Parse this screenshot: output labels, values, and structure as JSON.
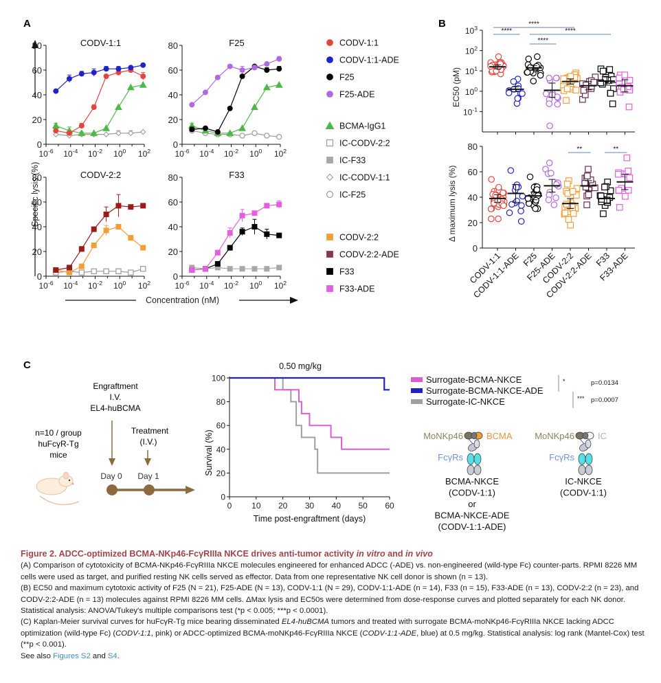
{
  "panels": {
    "A": {
      "letter": "A"
    },
    "B": {
      "letter": "B"
    },
    "C": {
      "letter": "C"
    }
  },
  "colors": {
    "codv11": "#e4453e",
    "codv11_ade": "#1f22c9",
    "f25": "#000000",
    "f25_ade": "#b168e0",
    "bcma_igg1": "#4fb848",
    "ic_grey": "#9a9a9a",
    "ic_f33": "#a8a8a8",
    "codv22": "#f0a038",
    "codv22_ade": "#8a3456",
    "codv22_ade_line": "#9b1b1b",
    "f33": "#000000",
    "f33_ade": "#e45fe0",
    "sig_line": "#5b86b8",
    "brown": "#8c6a3f",
    "caption_title": "#a0454b",
    "link": "#3a8fc4"
  },
  "chart_data": [
    {
      "id": "A-codv11",
      "type": "line",
      "title": "CODV-1:1",
      "xscale": "log10",
      "xlim": [
        -6,
        2
      ],
      "xticks": [
        "10-6",
        "10-4",
        "10-2",
        "100",
        "102"
      ],
      "ylim": [
        0,
        80
      ],
      "yticks": [
        "0",
        "20",
        "40",
        "60",
        "80"
      ],
      "x_log": [
        -5.2,
        -4.1,
        -3.1,
        -2.1,
        -1.1,
        -0.1,
        0.9,
        1.9
      ],
      "series": [
        {
          "name": "CODV-1:1-ADE",
          "marker": "circle",
          "color": "#1f22c9",
          "values": [
            43,
            53,
            57,
            58,
            61,
            61,
            62,
            64
          ],
          "err": [
            1,
            3,
            2,
            3,
            2,
            2,
            1,
            1
          ]
        },
        {
          "name": "CODV-1:1",
          "marker": "circle",
          "color": "#e4453e",
          "values": [
            11,
            9,
            15,
            30,
            55,
            58,
            60,
            55
          ],
          "err": [
            1,
            1,
            2,
            2,
            1,
            1,
            2,
            3
          ]
        },
        {
          "name": "BCMA-IgG1",
          "marker": "triangle",
          "color": "#4fb848",
          "values": [
            15,
            11,
            9,
            9,
            13,
            30,
            46,
            48
          ],
          "err": [
            2,
            3,
            1,
            1,
            1,
            1,
            1,
            1
          ]
        },
        {
          "name": "IC-CODV-1:1",
          "marker": "diamond-open",
          "color": "#9a9a9a",
          "values": [
            8,
            7,
            8,
            8,
            8,
            9,
            9,
            10
          ],
          "err": [
            2,
            1,
            2,
            1,
            1,
            2,
            2,
            1
          ]
        }
      ]
    },
    {
      "id": "A-f25",
      "type": "line",
      "title": "F25",
      "xscale": "log10",
      "xlim": [
        -6,
        2
      ],
      "xticks": [
        "10-6",
        "10-4",
        "10-2",
        "100",
        "102"
      ],
      "ylim": [
        0,
        80
      ],
      "yticks": [
        "0",
        "20",
        "40",
        "60",
        "80"
      ],
      "x_log": [
        -5.2,
        -4.1,
        -3.1,
        -2.1,
        -1.1,
        -0.1,
        0.9,
        1.9
      ],
      "series": [
        {
          "name": "F25-ADE",
          "marker": "circle",
          "color": "#b168e0",
          "values": [
            32,
            42,
            54,
            63,
            60,
            62,
            65,
            69
          ],
          "err": [
            1,
            1,
            1,
            1,
            3,
            2,
            1,
            2
          ]
        },
        {
          "name": "F25",
          "marker": "circle",
          "color": "#000000",
          "values": [
            12,
            13,
            10,
            29,
            55,
            63,
            60,
            61
          ],
          "err": [
            2,
            1,
            1,
            1,
            1,
            1,
            2,
            2
          ]
        },
        {
          "name": "BCMA-IgG1",
          "marker": "triangle",
          "color": "#4fb848",
          "values": [
            15,
            11,
            9,
            9,
            13,
            30,
            46,
            48
          ],
          "err": [
            2,
            1,
            1,
            1,
            1,
            1,
            1,
            1
          ]
        },
        {
          "name": "IC-F25",
          "marker": "circle-open",
          "color": "#9a9a9a",
          "values": [
            11,
            9,
            8,
            8,
            7,
            9,
            7,
            6
          ],
          "err": [
            2,
            1,
            1,
            1,
            1,
            1,
            1,
            1
          ]
        }
      ]
    },
    {
      "id": "A-codv22",
      "type": "line",
      "title": "CODV-2:2",
      "xscale": "log10",
      "xlim": [
        -6,
        2
      ],
      "xticks": [
        "10-6",
        "10-4",
        "10-2",
        "100",
        "102"
      ],
      "ylim": [
        0,
        80
      ],
      "yticks": [
        "0",
        "20",
        "40",
        "60",
        "80"
      ],
      "x_log": [
        -5.2,
        -4.1,
        -3.1,
        -2.1,
        -1.1,
        -0.1,
        0.9,
        1.9
      ],
      "series": [
        {
          "name": "CODV-2:2-ADE",
          "marker": "square",
          "color": "#9b1b1b",
          "values": [
            5,
            7,
            22,
            38,
            50,
            57,
            56,
            57
          ],
          "err": [
            1,
            1,
            2,
            1,
            6,
            9,
            1,
            1
          ]
        },
        {
          "name": "CODV-2:2",
          "marker": "square",
          "color": "#f0a038",
          "values": [
            5,
            3,
            8,
            25,
            37,
            40,
            31,
            23
          ],
          "err": [
            1,
            1,
            1,
            1,
            4,
            1,
            2,
            1
          ]
        },
        {
          "name": "IC-CODV-2:2",
          "marker": "square-open",
          "color": "#9a9a9a",
          "values": [
            3,
            4,
            3,
            4,
            4,
            4,
            3,
            6
          ],
          "err": [
            1,
            1,
            1,
            1,
            1,
            2,
            1,
            2
          ]
        }
      ]
    },
    {
      "id": "A-f33",
      "type": "line",
      "title": "F33",
      "xscale": "log10",
      "xlim": [
        -6,
        2
      ],
      "xticks": [
        "10-6",
        "10-4",
        "10-2",
        "100",
        "102"
      ],
      "ylim": [
        0,
        80
      ],
      "yticks": [
        "0",
        "20",
        "40",
        "60",
        "80"
      ],
      "x_log": [
        -5.2,
        -4.1,
        -3.1,
        -2.1,
        -1.1,
        -0.1,
        0.9,
        1.9
      ],
      "series": [
        {
          "name": "F33-ADE",
          "marker": "square",
          "color": "#e45fe0",
          "values": [
            5,
            6,
            19,
            35,
            49,
            51,
            57,
            58
          ],
          "err": [
            1,
            1,
            2,
            4,
            5,
            1,
            1,
            3
          ]
        },
        {
          "name": "F33",
          "marker": "square",
          "color": "#000000",
          "values": [
            5,
            6,
            10,
            23,
            36,
            40,
            34,
            33
          ],
          "err": [
            1,
            1,
            1,
            2,
            3,
            6,
            4,
            1
          ]
        },
        {
          "name": "IC-F33",
          "marker": "square",
          "color": "#a8a8a8",
          "values": [
            7,
            6,
            7,
            6,
            6,
            6,
            6,
            7
          ],
          "err": [
            1,
            1,
            1,
            1,
            1,
            1,
            1,
            1
          ]
        }
      ]
    },
    {
      "id": "B-ec50",
      "type": "scatter",
      "ylabel": "EC50 (pM)",
      "yscale": "log10",
      "ylim": [
        -2,
        3
      ],
      "yticks": [
        "103",
        "102",
        "101",
        "100",
        "10-1"
      ],
      "categories": [
        "CODV-1:1",
        "CODV-1:1-ADE",
        "F25",
        "F25-ADE",
        "CODV-2:2",
        "CODV-2:2-ADE",
        "F33",
        "F33-ADE"
      ],
      "means_log": [
        1.2,
        0.1,
        1.15,
        0.05,
        0.48,
        0.27,
        0.5,
        0.27
      ],
      "sem_log": [
        0.1,
        0.12,
        0.12,
        0.35,
        0.13,
        0.2,
        0.2,
        0.3
      ],
      "spread_log": [
        [
          0.85,
          1.7
        ],
        [
          -0.6,
          0.6
        ],
        [
          0.5,
          1.7
        ],
        [
          -1.7,
          0.65
        ],
        [
          -0.45,
          0.9
        ],
        [
          -0.4,
          0.7
        ],
        [
          -0.62,
          1.1
        ],
        [
          -0.77,
          0.8
        ]
      ],
      "n": [
        29,
        14,
        21,
        13,
        23,
        13,
        15,
        13
      ],
      "significance": [
        {
          "from": 0,
          "to": 1,
          "label": "****",
          "level": 1
        },
        {
          "from": 0,
          "to": 4,
          "label": "****",
          "level": 0
        },
        {
          "from": 2,
          "to": 3,
          "label": "****",
          "level": 2
        },
        {
          "from": 2,
          "to": 6,
          "label": "****",
          "level": 1
        }
      ]
    },
    {
      "id": "B-maxlysis",
      "type": "scatter",
      "ylabel": "Δ maximum lysis (%)",
      "ylim": [
        0,
        80
      ],
      "yticks": [
        "0",
        "20",
        "40",
        "60",
        "80"
      ],
      "categories": [
        "CODV-1:1",
        "CODV-1:1-ADE",
        "F25",
        "F25-ADE",
        "CODV-2:2",
        "CODV-2:2-ADE",
        "F33",
        "F33-ADE"
      ],
      "means": [
        39,
        43,
        41,
        49,
        35,
        49,
        39,
        52
      ],
      "sem": [
        3,
        7,
        3,
        5,
        4,
        4,
        4,
        6
      ],
      "spread": [
        [
          23,
          54
        ],
        [
          21,
          61
        ],
        [
          31,
          56
        ],
        [
          34,
          67
        ],
        [
          18,
          53
        ],
        [
          34,
          62
        ],
        [
          27,
          52
        ],
        [
          32,
          71
        ]
      ],
      "n": [
        29,
        14,
        21,
        13,
        23,
        13,
        15,
        13
      ],
      "significance": [
        {
          "from": 4,
          "to": 5,
          "label": "**"
        },
        {
          "from": 6,
          "to": 7,
          "label": "**"
        }
      ]
    },
    {
      "id": "C-survival",
      "type": "line",
      "title": "0.50 mg/kg",
      "xlabel": "Time post-engraftment (days)",
      "ylabel": "Survival (%)",
      "xlim": [
        0,
        60
      ],
      "ylim": [
        0,
        100
      ],
      "xticks": [
        "0",
        "10",
        "20",
        "30",
        "40",
        "50",
        "60"
      ],
      "yticks": [
        "0",
        "20",
        "40",
        "60",
        "80",
        "100"
      ],
      "series": [
        {
          "name": "Surrogate-BCMA-NKCE",
          "color": "#d85fcf",
          "steps": [
            [
              0,
              100
            ],
            [
              17,
              90
            ],
            [
              26,
              80
            ],
            [
              27,
              70
            ],
            [
              30,
              60
            ],
            [
              38,
              50
            ],
            [
              42,
              40
            ],
            [
              60,
              40
            ]
          ]
        },
        {
          "name": "Surrogate-BCMA-NKCE-ADE",
          "color": "#1f22c9",
          "steps": [
            [
              0,
              100
            ],
            [
              58,
              90
            ],
            [
              60,
              90
            ]
          ]
        },
        {
          "name": "Surrogate-IC-NKCE",
          "color": "#a0a0a0",
          "steps": [
            [
              0,
              100
            ],
            [
              20,
              90
            ],
            [
              23,
              80
            ],
            [
              25,
              60
            ],
            [
              27,
              50
            ],
            [
              32,
              40
            ],
            [
              33,
              20
            ],
            [
              60,
              20
            ]
          ]
        }
      ],
      "pvalues": [
        {
          "stars": "*",
          "value": "p=0.0134"
        },
        {
          "stars": "***",
          "value": "p=0.0007"
        }
      ]
    }
  ],
  "panelA": {
    "ylabel": "Specific lysis (%)",
    "xlabel": "Concentration (nM)",
    "legend_groups": [
      [
        {
          "label": "CODV-1:1",
          "marker": "circle",
          "color": "#e4453e"
        },
        {
          "label": "CODV-1:1-ADE",
          "marker": "circle",
          "color": "#1f22c9"
        },
        {
          "label": "F25",
          "marker": "circle",
          "color": "#000000"
        },
        {
          "label": "F25-ADE",
          "marker": "circle",
          "color": "#b168e0"
        }
      ],
      [
        {
          "label": "BCMA-IgG1",
          "marker": "triangle",
          "color": "#4fb848"
        },
        {
          "label": "IC-CODV-2:2",
          "marker": "square-open",
          "color": "#9a9a9a"
        },
        {
          "label": "IC-F33",
          "marker": "square",
          "color": "#a8a8a8"
        },
        {
          "label": "IC-CODV-1:1",
          "marker": "diamond-open",
          "color": "#9a9a9a"
        },
        {
          "label": "IC-F25",
          "marker": "circle-open",
          "color": "#9a9a9a"
        }
      ],
      [
        {
          "label": "CODV-2:2",
          "marker": "square",
          "color": "#f0a038"
        },
        {
          "label": "CODV-2:2-ADE",
          "marker": "square",
          "color": "#8a3456"
        },
        {
          "label": "F33",
          "marker": "square",
          "color": "#000000"
        },
        {
          "label": "F33-ADE",
          "marker": "square",
          "color": "#e45fe0"
        }
      ]
    ]
  },
  "panelC": {
    "schema": {
      "engraftment": [
        "Engraftment",
        "I.V.",
        "EL4-huBCMA"
      ],
      "group": [
        "n=10 / group",
        "huFcγR-Tg",
        "mice"
      ],
      "treatment": [
        "Treatment",
        "(I.V.)"
      ],
      "day0": "Day 0",
      "day1": "Day 1"
    },
    "molecules": [
      {
        "nkp46": "MoNKp46",
        "target": "BCMA",
        "fc": "FcγRs",
        "names": [
          "BCMA-NKCE",
          "(CODV-1:1)",
          "or",
          "BCMA-NKCE-ADE",
          "(CODV-1:1-ADE)"
        ]
      },
      {
        "nkp46": "MoNKp46",
        "target": "IC",
        "fc": "FcγRs",
        "names": [
          "IC-NKCE",
          "(CODV-1:1)"
        ]
      }
    ]
  },
  "caption": {
    "title_prefix": "Figure 2.  ADCC-optimized BCMA-NKp46-FcγRIIIa NKCE drives anti-tumor activity ",
    "title_it1": "in vitro",
    "title_and": " and ",
    "title_it2": "in vivo",
    "a_text": "(A) Comparison of cytotoxicity of BCMA-NKp46-FcγRIIIa NKCE molecules engineered for enhanced ADCC (-ADE) vs. non-engineered (wild-type Fc) counter-parts. RPMI 8226 MM cells were used as target, and purified resting NK cells served as effector. Data from one representative NK cell donor is shown (n = 13).",
    "b_text": "(B) EC50 and maximum cytotoxic activity of F25 (N = 21), F25-ADE (N = 13), CODV-1:1 (N = 29), CODV-1:1-ADE (n = 14), F33 (n = 15), F33-ADE (n = 13), CODV-2:2 (n = 23), and CODV-2:2-ADE (n = 13) molecules against RPMI 8226 MM cells. ΔMax lysis and EC50s were determined from dose-response curves and plotted separately for each NK donor. Statistical analysis: ANOVA/Tukey's multiple comparisons test (*p < 0.005; ***p < 0.0001).",
    "c_text_1": "(C) Kaplan-Meier survival curves for huFcγR-Tg mice bearing disseminated ",
    "c_it1": "EL4-huBCMA",
    "c_text_2": " tumors and treated with surrogate BCMA-moNKp46-FcγRIIIa NKCE lacking ADCC optimization (wild-type Fc) (",
    "c_it2": "CODV-1:1",
    "c_text_3": ", pink) or ADCC-optimized BCMA-moNKp46-FcγRIIIa NKCE (",
    "c_it3": "CODV-1:1-ADE",
    "c_text_4": ", blue) at 0.5 mg/kg. Statistical analysis: log rank (Mantel-Cox) test (**p < 0.001).",
    "see_also": "See also ",
    "link1": "Figures S2",
    "and": " and ",
    "link2": "S4",
    "end": "."
  }
}
